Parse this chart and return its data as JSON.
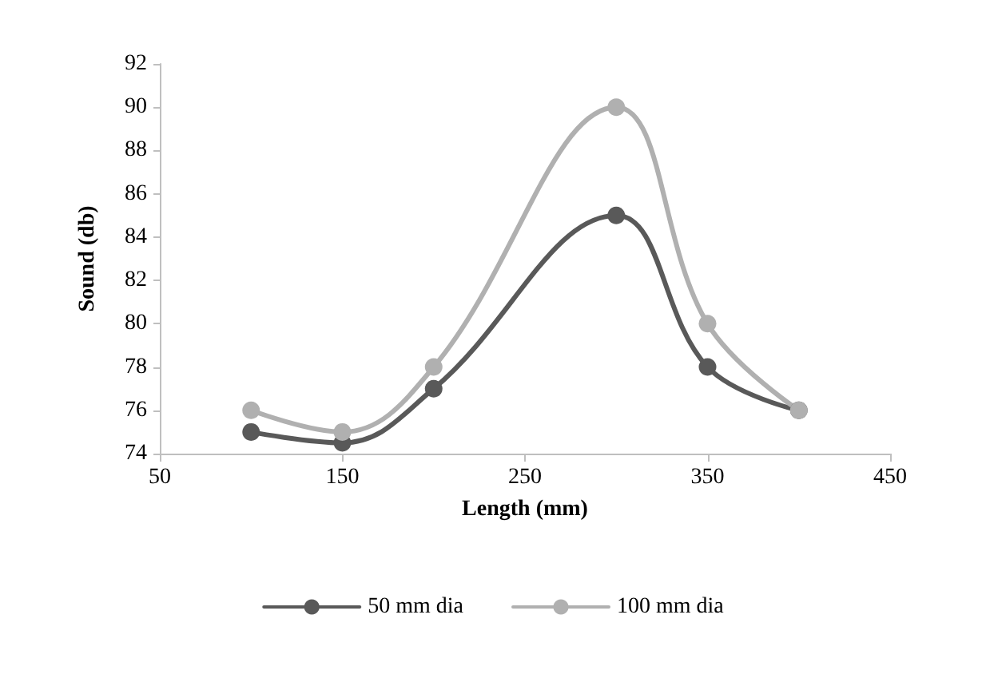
{
  "chart_data": {
    "type": "line",
    "xlabel": "Length (mm)",
    "ylabel": "Sound (db)",
    "x": [
      100,
      150,
      200,
      300,
      350,
      400
    ],
    "series": [
      {
        "name": "50 mm dia",
        "color": "#595959",
        "values": [
          75,
          74.5,
          77,
          85,
          78,
          76
        ]
      },
      {
        "name": "100 mm dia",
        "color": "#b0b0b0",
        "values": [
          76,
          75,
          78,
          90,
          80,
          76
        ]
      }
    ],
    "xlim": [
      50,
      450
    ],
    "xticks": [
      50,
      150,
      250,
      350,
      450
    ],
    "ylim": [
      74,
      92
    ],
    "yticks": [
      74,
      76,
      78,
      80,
      82,
      84,
      86,
      88,
      90,
      92
    ],
    "grid": false,
    "legend": "bottom",
    "marker": "circle",
    "line_style": "solid"
  }
}
